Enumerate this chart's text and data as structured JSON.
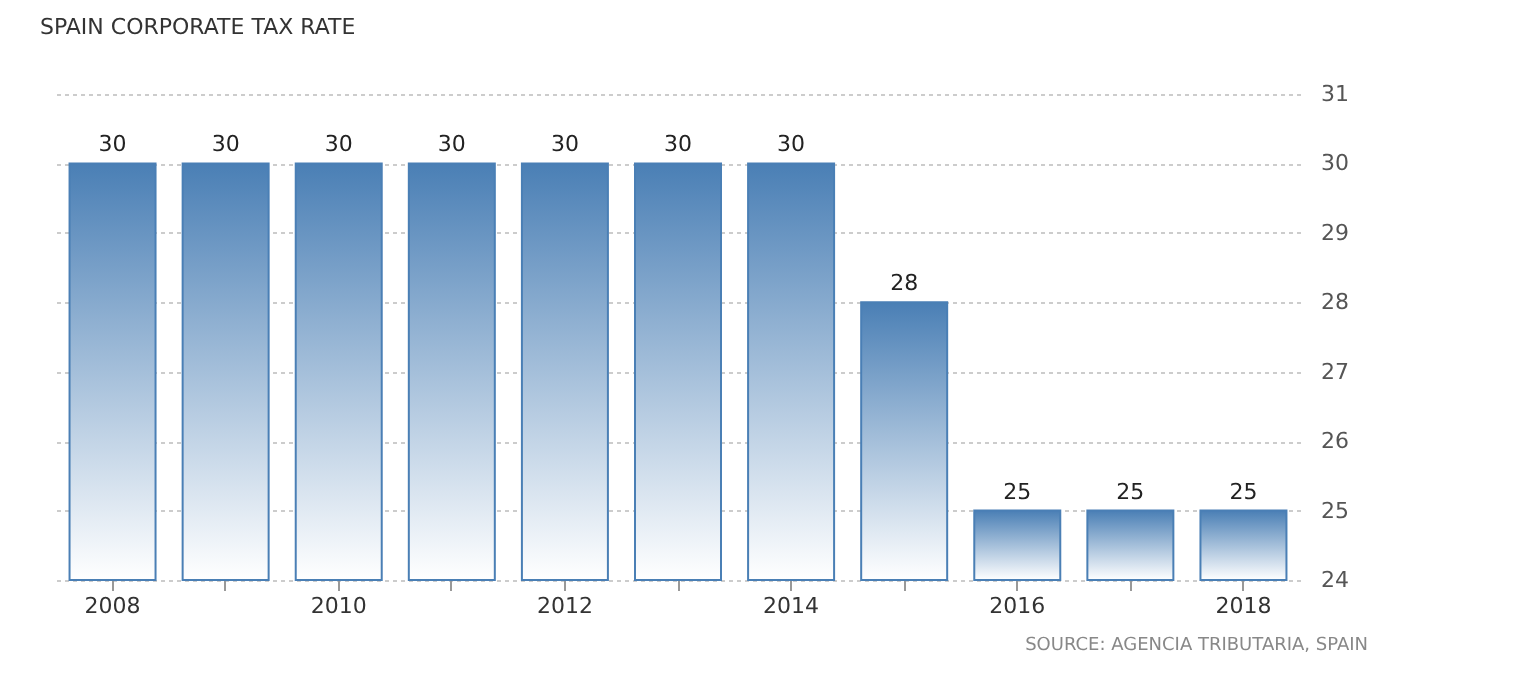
{
  "chart_data": {
    "type": "bar",
    "title": "SPAIN CORPORATE TAX RATE",
    "categories": [
      "2008",
      null,
      "2010",
      null,
      "2012",
      null,
      "2014",
      null,
      "2016",
      null,
      "2018"
    ],
    "values": [
      30,
      30,
      30,
      30,
      30,
      30,
      30,
      28,
      25,
      25,
      25
    ],
    "color": "#4a7fb5",
    "ylim": [
      24,
      31
    ],
    "yticks": [
      24,
      25,
      26,
      27,
      28,
      29,
      30,
      31
    ],
    "grid": "y",
    "data_labels": true,
    "annotations": [
      "SOURCE: AGENCIA TRIBUTARIA, SPAIN"
    ]
  }
}
